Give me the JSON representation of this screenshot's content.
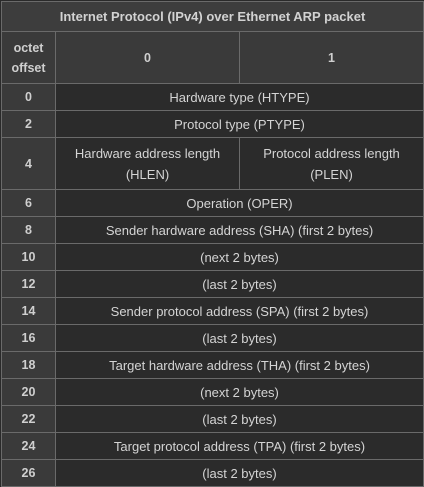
{
  "title": "Internet Protocol (IPv4) over Ethernet ARP packet",
  "header": {
    "offset_label": "octet offset",
    "byte0": "0",
    "byte1": "1"
  },
  "rows": [
    {
      "offset": "0",
      "field": "Hardware type (HTYPE)"
    },
    {
      "offset": "2",
      "field": "Protocol type (PTYPE)"
    },
    {
      "offset": "4",
      "field_a": "Hardware address length (HLEN)",
      "field_b": "Protocol address length (PLEN)"
    },
    {
      "offset": "6",
      "field": "Operation (OPER)"
    },
    {
      "offset": "8",
      "field": "Sender hardware address (SHA) (first 2 bytes)"
    },
    {
      "offset": "10",
      "field": "(next 2 bytes)"
    },
    {
      "offset": "12",
      "field": "(last 2 bytes)"
    },
    {
      "offset": "14",
      "field": "Sender protocol address (SPA) (first 2 bytes)"
    },
    {
      "offset": "16",
      "field": "(last 2 bytes)"
    },
    {
      "offset": "18",
      "field": "Target hardware address (THA) (first 2 bytes)"
    },
    {
      "offset": "20",
      "field": "(next 2 bytes)"
    },
    {
      "offset": "22",
      "field": "(last 2 bytes)"
    },
    {
      "offset": "24",
      "field": "Target protocol address (TPA) (first 2 bytes)"
    },
    {
      "offset": "26",
      "field": "(last 2 bytes)"
    }
  ]
}
